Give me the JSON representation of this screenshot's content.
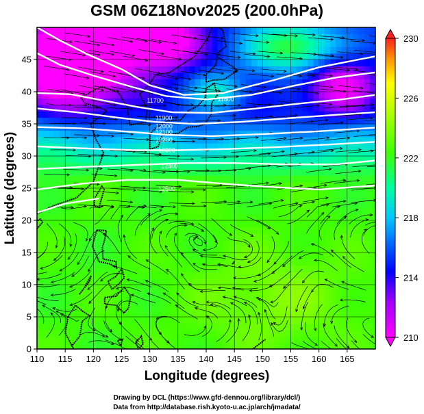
{
  "chart_data": {
    "type": "heatmap",
    "title": "GSM 06Z18Nov2025 (200.0hPa)",
    "xlabel": "Longitude (degrees)",
    "ylabel": "Latitude  (degrees)",
    "xlim": [
      110,
      170
    ],
    "ylim": [
      0,
      50
    ],
    "xticks": [
      "110",
      "115",
      "120",
      "125",
      "130",
      "135",
      "140",
      "145",
      "150",
      "155",
      "160",
      "165"
    ],
    "yticks": [
      "0",
      "5",
      "10",
      "15",
      "20",
      "25",
      "30",
      "35",
      "40",
      "45"
    ],
    "colorbar": {
      "range": [
        210,
        230
      ],
      "ticks": [
        "210",
        "214",
        "218",
        "222",
        "226",
        "230"
      ],
      "colors": [
        "#ff00ff",
        "#0000ff",
        "#00c8ff",
        "#00ff80",
        "#40ff00",
        "#ffff00",
        "#ff9600",
        "#ff2020"
      ]
    },
    "contour_labels": [
      "11700",
      "11800",
      "11900",
      "12000",
      "12100",
      "12200",
      "12300",
      "12400",
      "12500"
    ],
    "grid": true,
    "features": [
      "coastlines",
      "streamlines",
      "geopotential height contours"
    ]
  },
  "footer": {
    "line1": "Drawing by DCL (https://www.gfd-dennou.org/library/dcl/)",
    "line2": "Data from http://database.rish.kyoto-u.ac.jp/arch/jmadata/"
  }
}
